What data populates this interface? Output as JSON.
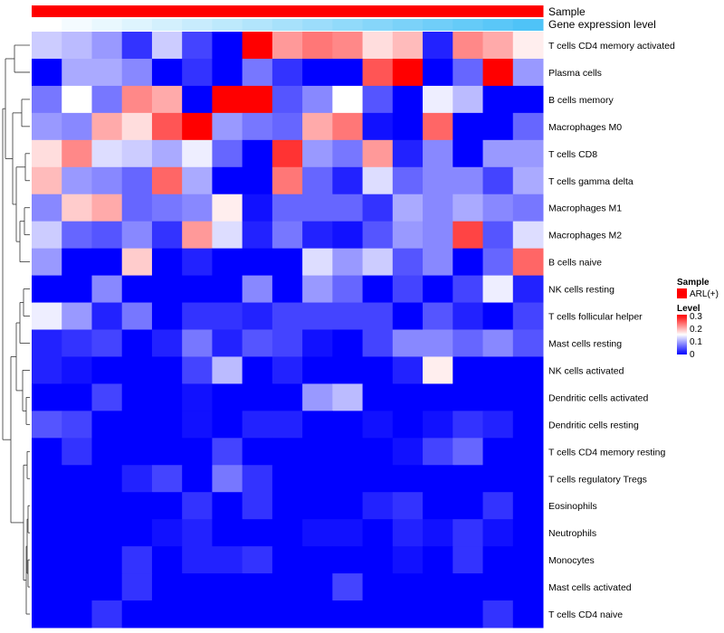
{
  "chart_data": {
    "type": "heatmap",
    "annotations": [
      {
        "name": "Sample",
        "color": "#ff0000"
      },
      {
        "name": "Gene expression level",
        "gradient": [
          "#ffffff",
          "#4fc3f7"
        ]
      }
    ],
    "rows": [
      "T cells CD4 memory activated",
      "Plasma cells",
      "B cells memory",
      "Macrophages M0",
      "T cells CD8",
      "T cells gamma delta",
      "Macrophages M1",
      "Macrophages M2",
      "B cells naive",
      "NK cells resting",
      "T cells follicular helper",
      "Mast cells resting",
      "NK cells activated",
      "Dendritic cells activated",
      "Dendritic cells resting",
      "T cells CD4 memory resting",
      "T cells regulatory  Tregs",
      "Eosinophils",
      "Neutrophils",
      "Monocytes",
      "Mast cells activated",
      "T cells CD4 naive"
    ],
    "values": [
      [
        0.12,
        0.11,
        0.09,
        0.03,
        0.12,
        0.04,
        0.0,
        0.3,
        0.21,
        0.23,
        0.22,
        0.17,
        0.19,
        0.02,
        0.22,
        0.2,
        0.16
      ],
      [
        0.0,
        0.1,
        0.1,
        0.08,
        0.0,
        0.03,
        0.0,
        0.07,
        0.03,
        0.0,
        0.0,
        0.25,
        0.3,
        0.0,
        0.06,
        0.3,
        0.09
      ],
      [
        0.07,
        0.15,
        0.07,
        0.22,
        0.2,
        0.0,
        0.3,
        0.3,
        0.05,
        0.08,
        0.15,
        0.05,
        0.0,
        0.14,
        0.11,
        0.0,
        0.0
      ],
      [
        0.09,
        0.08,
        0.2,
        0.17,
        0.25,
        0.3,
        0.09,
        0.07,
        0.06,
        0.2,
        0.23,
        0.01,
        0.0,
        0.24,
        0.0,
        0.0,
        0.06
      ],
      [
        0.17,
        0.22,
        0.13,
        0.12,
        0.1,
        0.14,
        0.06,
        0.0,
        0.27,
        0.09,
        0.07,
        0.21,
        0.02,
        0.08,
        0.0,
        0.09,
        0.09
      ],
      [
        0.19,
        0.09,
        0.08,
        0.06,
        0.24,
        0.1,
        0.0,
        0.0,
        0.23,
        0.06,
        0.02,
        0.13,
        0.06,
        0.08,
        0.08,
        0.04,
        0.1
      ],
      [
        0.08,
        0.18,
        0.2,
        0.06,
        0.07,
        0.08,
        0.16,
        0.01,
        0.06,
        0.06,
        0.06,
        0.03,
        0.1,
        0.08,
        0.1,
        0.08,
        0.07
      ],
      [
        0.12,
        0.06,
        0.05,
        0.08,
        0.03,
        0.21,
        0.13,
        0.02,
        0.07,
        0.02,
        0.01,
        0.05,
        0.09,
        0.08,
        0.26,
        0.05,
        0.13
      ],
      [
        0.09,
        0.0,
        0.0,
        0.18,
        0.0,
        0.02,
        0.0,
        0.0,
        0.0,
        0.13,
        0.09,
        0.12,
        0.05,
        0.08,
        0.0,
        0.06,
        0.24
      ],
      [
        0.0,
        0.0,
        0.08,
        0.0,
        0.0,
        0.0,
        0.0,
        0.08,
        0.0,
        0.09,
        0.06,
        0.0,
        0.04,
        0.0,
        0.04,
        0.14,
        0.02
      ],
      [
        0.14,
        0.09,
        0.02,
        0.07,
        0.0,
        0.03,
        0.03,
        0.02,
        0.04,
        0.04,
        0.04,
        0.04,
        0.0,
        0.05,
        0.02,
        0.0,
        0.04
      ],
      [
        0.02,
        0.03,
        0.04,
        0.0,
        0.02,
        0.07,
        0.02,
        0.05,
        0.04,
        0.01,
        0.0,
        0.04,
        0.08,
        0.08,
        0.06,
        0.08,
        0.05
      ],
      [
        0.02,
        0.01,
        0.0,
        0.0,
        0.0,
        0.04,
        0.11,
        0.0,
        0.02,
        0.0,
        0.0,
        0.0,
        0.02,
        0.16,
        0.0,
        0.0,
        0.0
      ],
      [
        0.0,
        0.0,
        0.04,
        0.0,
        0.0,
        0.01,
        0.0,
        0.0,
        0.0,
        0.09,
        0.11,
        0.0,
        0.0,
        0.0,
        0.0,
        0.0,
        0.0
      ],
      [
        0.05,
        0.04,
        0.0,
        0.0,
        0.0,
        0.01,
        0.0,
        0.02,
        0.02,
        0.0,
        0.0,
        0.01,
        0.0,
        0.01,
        0.03,
        0.02,
        0.0
      ],
      [
        0.0,
        0.03,
        0.0,
        0.0,
        0.0,
        0.0,
        0.04,
        0.0,
        0.0,
        0.0,
        0.0,
        0.0,
        0.01,
        0.04,
        0.06,
        0.0,
        0.0
      ],
      [
        0.0,
        0.0,
        0.0,
        0.02,
        0.04,
        0.0,
        0.07,
        0.03,
        0.0,
        0.0,
        0.0,
        0.0,
        0.0,
        0.0,
        0.0,
        0.0,
        0.0
      ],
      [
        0.0,
        0.0,
        0.0,
        0.0,
        0.0,
        0.03,
        0.0,
        0.03,
        0.0,
        0.0,
        0.0,
        0.02,
        0.03,
        0.0,
        0.0,
        0.03,
        0.0
      ],
      [
        0.0,
        0.0,
        0.0,
        0.0,
        0.01,
        0.02,
        0.0,
        0.0,
        0.0,
        0.01,
        0.01,
        0.0,
        0.02,
        0.01,
        0.03,
        0.01,
        0.0
      ],
      [
        0.0,
        0.0,
        0.0,
        0.03,
        0.0,
        0.02,
        0.02,
        0.03,
        0.0,
        0.0,
        0.0,
        0.0,
        0.01,
        0.0,
        0.03,
        0.0,
        0.0
      ],
      [
        0.0,
        0.0,
        0.0,
        0.03,
        0.0,
        0.0,
        0.0,
        0.0,
        0.0,
        0.0,
        0.04,
        0.0,
        0.0,
        0.0,
        0.0,
        0.0,
        0.0
      ],
      [
        0.0,
        0.0,
        0.03,
        0.0,
        0.0,
        0.0,
        0.0,
        0.0,
        0.0,
        0.0,
        0.0,
        0.0,
        0.0,
        0.0,
        0.0,
        0.03,
        0.0
      ]
    ],
    "color_scale": {
      "min": 0,
      "mid": 0.15,
      "max": 0.3,
      "low": "#0000ff",
      "midColor": "#ffffff",
      "high": "#ff0000"
    },
    "legend": {
      "sample_title": "Sample",
      "sample_label": "ARL(+)",
      "level_title": "Level",
      "level_ticks": [
        "0.3",
        "0.2",
        "0.1",
        "0"
      ]
    },
    "row_dendrogram": true,
    "column_count": 17
  }
}
